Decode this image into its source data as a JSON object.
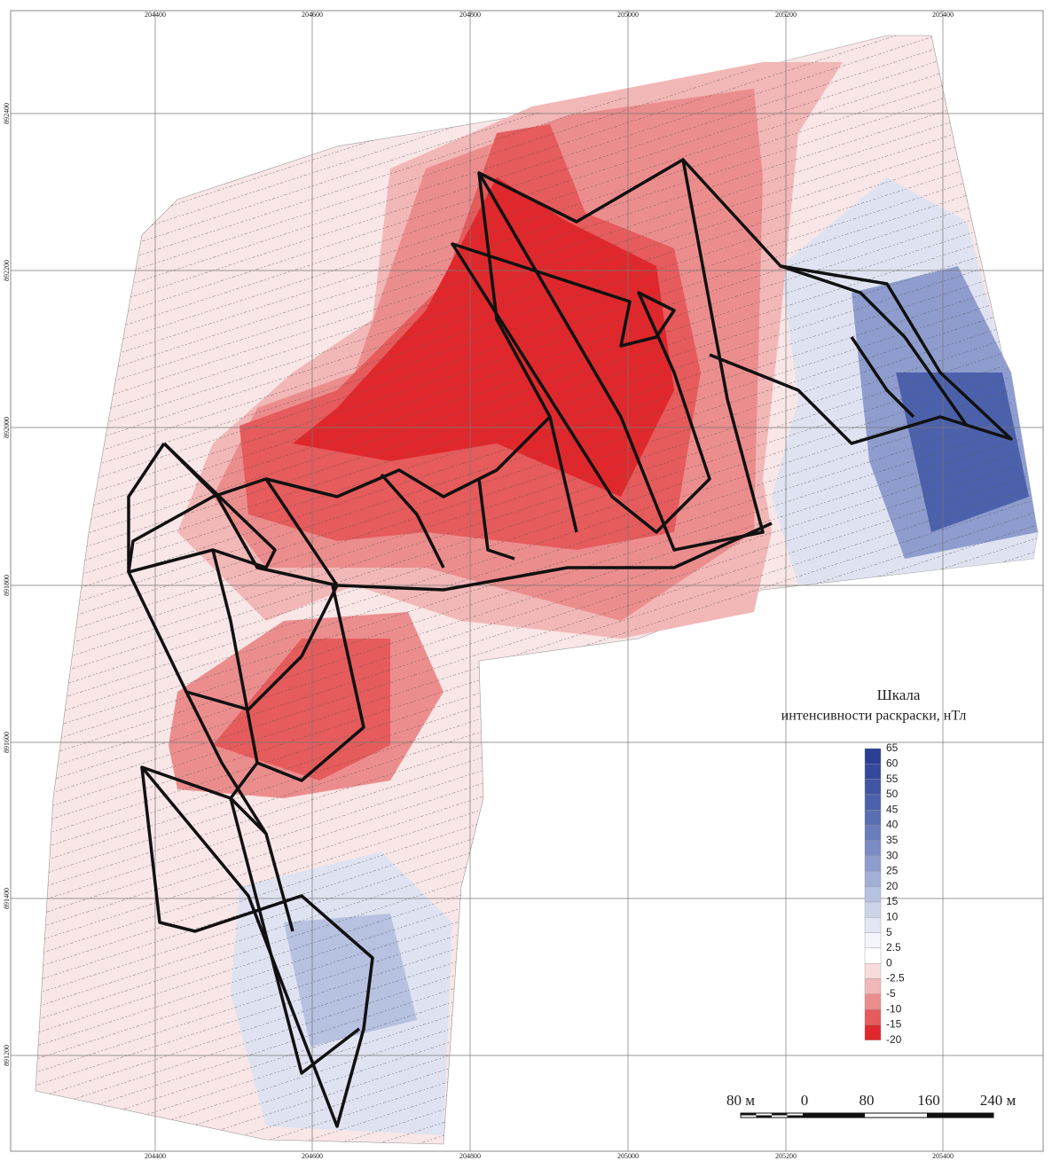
{
  "axes": {
    "top": [
      "204400",
      "204600",
      "204800",
      "205000",
      "205200",
      "205400"
    ],
    "left": [
      "892400",
      "892200",
      "892000",
      "891800",
      "891600",
      "891400",
      "891200"
    ]
  },
  "legend": {
    "title": "Шкала",
    "subtitle": "интенсивности раскраски, нТл",
    "labels": [
      "65",
      "60",
      "55",
      "50",
      "45",
      "40",
      "35",
      "30",
      "25",
      "20",
      "15",
      "10",
      "5",
      "2.5",
      "0",
      "-2.5",
      "-5",
      "-10",
      "-15",
      "-20"
    ],
    "colors": [
      "#2b3f95",
      "#34499c",
      "#4055a4",
      "#4c61ab",
      "#5a6eb3",
      "#6a7dbb",
      "#7b8cc4",
      "#8e9dcd",
      "#a2afd7",
      "#b7c1e0",
      "#cdd4ea",
      "#e3e7f3",
      "#f4f5fa",
      "#ffffff",
      "#f8dcdc",
      "#f2b7b7",
      "#ec8d8d",
      "#e65b5c",
      "#e0282c"
    ]
  },
  "scale_bar": {
    "labels": [
      "80 м",
      "0",
      "80",
      "160",
      "240 м"
    ]
  }
}
